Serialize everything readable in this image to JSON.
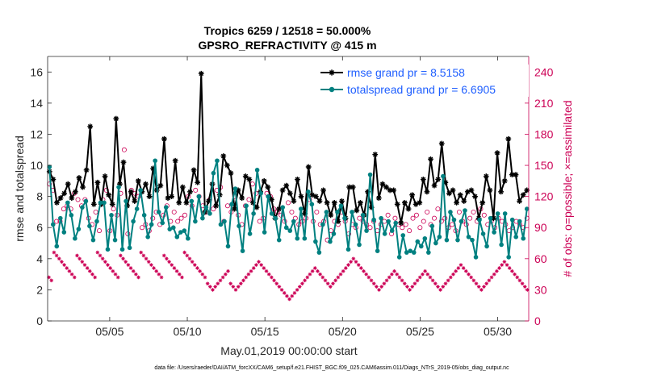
{
  "chart_data": {
    "type": "line",
    "title": "Tropics 6259 / 12518 = 50.000%",
    "subtitle": "GPSRO_REFRACTIVITY @ 415 m",
    "xlabel": "May.01,2019 00:00:00 start",
    "ylabel_left": "rmse and totalspread",
    "ylabel_right": "# of obs: o=possible; ×=assimilated",
    "footnote": "data file: /Users/raeder/DAI/ATM_forcXX/CAM6_setup/f.e21.FHIST_BGC.f09_025.CAM6assim.011/Diags_NTrS_2019-05/obs_diag_output.nc",
    "xlim": [
      1,
      32
    ],
    "ylim_left": [
      0,
      17
    ],
    "ylim_right": [
      0,
      255
    ],
    "x_tick_values": [
      5,
      10,
      15,
      20,
      25,
      30
    ],
    "x_tick_labels": [
      "05/05",
      "05/10",
      "05/15",
      "05/20",
      "05/25",
      "05/30"
    ],
    "y_tick_labels_left": [
      "0",
      "2",
      "4",
      "6",
      "8",
      "10",
      "12",
      "14",
      "16"
    ],
    "y_tick_labels_right": [
      "0",
      "30",
      "60",
      "90",
      "120",
      "150",
      "180",
      "210",
      "240"
    ],
    "series": [
      {
        "name": "rmse grand pr = 8.5158",
        "color": "#000000",
        "marker": "asterisk",
        "values": [
          9.6,
          9.1,
          7.6,
          7.9,
          8.2,
          8.8,
          7.9,
          8.3,
          9.2,
          8.6,
          9.7,
          12.5,
          7.5,
          8.9,
          7.5,
          9.3,
          8.1,
          7.5,
          13.0,
          8.8,
          10.2,
          7.4,
          8.3,
          7.7,
          9.0,
          8.3,
          8.8,
          8.0,
          9.8,
          8.4,
          8.7,
          11.7,
          7.9,
          8.0,
          10.3,
          7.6,
          8.6,
          7.6,
          8.3,
          9.7,
          8.9,
          15.9,
          7.0,
          7.7,
          8.8,
          7.4,
          8.1,
          10.6,
          10.0,
          9.5,
          7.2,
          8.4,
          7.9,
          9.3,
          9.1,
          7.6,
          7.3,
          8.3,
          9.0,
          8.6,
          7.8,
          6.6,
          7.2,
          8.4,
          8.7,
          8.2,
          7.7,
          9.1,
          8.0,
          6.9,
          9.9,
          8.1,
          8.0,
          7.7,
          8.4,
          7.6,
          6.8,
          7.6,
          6.4,
          7.7,
          6.6,
          8.6,
          8.6,
          7.1,
          7.6,
          6.8,
          8.3,
          7.3,
          10.7,
          7.9,
          8.8,
          8.6,
          8.4,
          8.4,
          7.5,
          6.3,
          7.6,
          7.2,
          8.1,
          7.5,
          7.6,
          9.1,
          8.3,
          10.4,
          8.7,
          9.1,
          11.4,
          8.9,
          8.2,
          8.4,
          7.6,
          8.1,
          7.7,
          8.3,
          8.4,
          8.0,
          6.6,
          7.6,
          9.3,
          8.4,
          6.6,
          10.8,
          8.3,
          9.0,
          11.7,
          9.4,
          9.4,
          7.7,
          8.1,
          8.4
        ]
      },
      {
        "name": "totalspread grand pr = 6.6905",
        "color": "#008080",
        "marker": "dot",
        "values": [
          9.9,
          6.2,
          4.8,
          6.6,
          5.7,
          7.6,
          6.8,
          5.3,
          5.9,
          7.3,
          7.7,
          6.1,
          5.2,
          6.4,
          7.6,
          7.6,
          4.6,
          6.8,
          5.2,
          8.6,
          4.6,
          7.7,
          4.7,
          6.4,
          7.2,
          8.4,
          6.8,
          5.4,
          6.2,
          10.3,
          7.0,
          6.3,
          7.3,
          5.9,
          6.0,
          5.4,
          5.7,
          5.8,
          5.3,
          7.7,
          6.4,
          8.0,
          6.6,
          7.3,
          6.9,
          9.5,
          10.3,
          6.2,
          6.4,
          4.8,
          7.5,
          8.5,
          6.1,
          4.5,
          7.4,
          5.6,
          6.9,
          9.7,
          8.2,
          5.7,
          8.0,
          6.9,
          6.6,
          5.2,
          7.3,
          6.0,
          5.8,
          6.4,
          5.3,
          7.2,
          5.3,
          8.3,
          7.5,
          5.1,
          4.4,
          6.2,
          7.0,
          5.1,
          5.6,
          7.0,
          7.4,
          6.6,
          4.6,
          7.0,
          6.2,
          4.9,
          6.8,
          5.8,
          9.4,
          6.5,
          4.5,
          6.6,
          5.6,
          6.4,
          5.8,
          6.3,
          4.1,
          5.5,
          4.4,
          4.5,
          4.4,
          5.1,
          4.8,
          5.3,
          4.4,
          6.1,
          5.0,
          5.4,
          9.3,
          5.2,
          7.0,
          6.5,
          5.2,
          6.4,
          7.1,
          5.4,
          5.2,
          4.1,
          6.5,
          5.6,
          4.8,
          6.6,
          5.7,
          6.9,
          4.9,
          6.9,
          4.1,
          6.5,
          5.4,
          6.4,
          5.3,
          7.2
        ]
      }
    ],
    "counts": {
      "possible_marker": "o",
      "assimilated_marker": "x",
      "possible_values": [
        132,
        126,
        96,
        96,
        108,
        111,
        108,
        123,
        117,
        111,
        117,
        99,
        93,
        105,
        87,
        117,
        126,
        87,
        108,
        102,
        123,
        165,
        84,
        126,
        123,
        120,
        90,
        93,
        87,
        99,
        105,
        93,
        102,
        111,
        96,
        105,
        96,
        99,
        102,
        120,
        111,
        126,
        120,
        111,
        105,
        117,
        108,
        126,
        129,
        96,
        111,
        105,
        120,
        102,
        93,
        111,
        117,
        132,
        123,
        96,
        99,
        123,
        120,
        108,
        105,
        102,
        96,
        114,
        105,
        99,
        93,
        96,
        99,
        117,
        96,
        105,
        93,
        96,
        78,
        87,
        96,
        93,
        105,
        96,
        84,
        93,
        90,
        99,
        96,
        93,
        90,
        96,
        87,
        93,
        96,
        102,
        84,
        99,
        93,
        90,
        93,
        87,
        99,
        102,
        90,
        96,
        105,
        93,
        99,
        108,
        96,
        99,
        90,
        93,
        87,
        105,
        96,
        93,
        99,
        105,
        96,
        108,
        102,
        93,
        96,
        90,
        99,
        96,
        93,
        87,
        90,
        96,
        93,
        90,
        99
      ],
      "assimilated_values": [
        42,
        39,
        66,
        63,
        60,
        57,
        54,
        51,
        48,
        45,
        42,
        63,
        60,
        57,
        54,
        51,
        48,
        45,
        42,
        66,
        63,
        60,
        57,
        54,
        51,
        48,
        45,
        42,
        63,
        60,
        57,
        54,
        51,
        48,
        45,
        42,
        66,
        63,
        60,
        57,
        54,
        51,
        48,
        45,
        42,
        63,
        60,
        57,
        54,
        51,
        48,
        45,
        42,
        66,
        63,
        60,
        57,
        54,
        51,
        48,
        45,
        42,
        36,
        33,
        30,
        33,
        36,
        39,
        42,
        45,
        48,
        36,
        33,
        30,
        33,
        36,
        39,
        42,
        45,
        48,
        51,
        54,
        57,
        54,
        51,
        48,
        45,
        42,
        39,
        36,
        33,
        30,
        27,
        24,
        21,
        24,
        27,
        30,
        33,
        36,
        39,
        42,
        45,
        48,
        51,
        48,
        45,
        42,
        39,
        36,
        33,
        36,
        39,
        42,
        45,
        48,
        51,
        54,
        57,
        60,
        57,
        54,
        51,
        48,
        45,
        42,
        39,
        36,
        33,
        30,
        33,
        36,
        39,
        42,
        45,
        48,
        45,
        42,
        39,
        36,
        33,
        30,
        33,
        36,
        39,
        42,
        45,
        48,
        45,
        42,
        39,
        36,
        33,
        30,
        33,
        36,
        39,
        42,
        45,
        48,
        51,
        54,
        51,
        48,
        45,
        42,
        39,
        36,
        33,
        30,
        33,
        36,
        39,
        42,
        45,
        48,
        51,
        54,
        57,
        54,
        51,
        48,
        45,
        42,
        39,
        36,
        33,
        30
      ]
    },
    "legend": {
      "placement": "top-right",
      "entries": [
        "rmse grand pr = 8.5158",
        "totalspread grand pr = 6.6905"
      ]
    },
    "grid": false
  }
}
